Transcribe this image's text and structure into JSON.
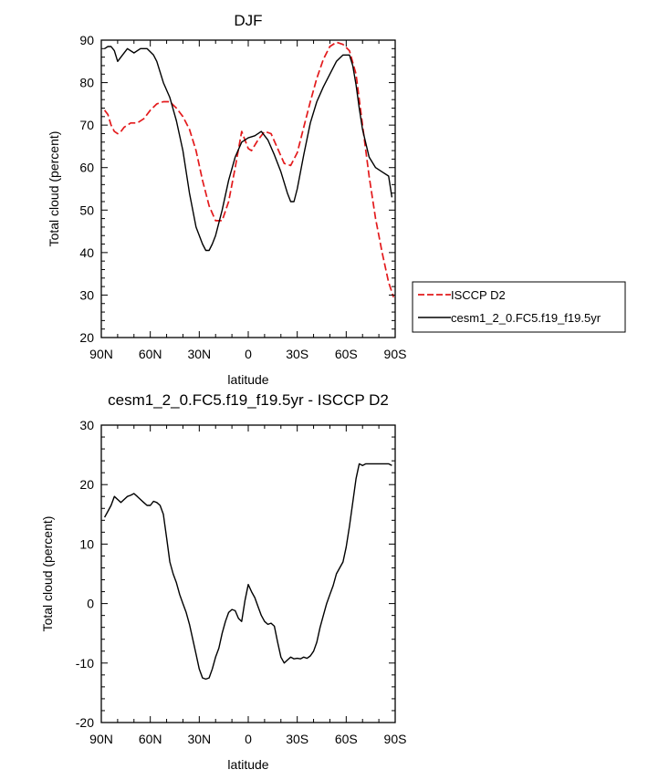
{
  "colors": {
    "model": "#000000",
    "observed": "#e31a1c",
    "frame": "#000000"
  },
  "legend": {
    "placement": "right, outside top panel",
    "entries": [
      {
        "label": "ISCCP D2",
        "color": "#e31a1c",
        "style": "dashed"
      },
      {
        "label": "cesm1_2_0.FC5.f19_f19.5yr",
        "color": "#000000",
        "style": "solid"
      }
    ]
  },
  "chart_data": [
    {
      "type": "line",
      "title": "DJF",
      "xlabel": "latitude",
      "ylabel": "Total cloud (percent)",
      "xlim": [
        90,
        -90
      ],
      "ylim": [
        20,
        90
      ],
      "xticks": [
        90,
        60,
        30,
        0,
        -30,
        -60,
        -90
      ],
      "xtick_labels": [
        "90N",
        "60N",
        "30N",
        "0",
        "30S",
        "60S",
        "90S"
      ],
      "yticks": [
        20,
        30,
        40,
        50,
        60,
        70,
        80,
        90
      ],
      "ytick_labels": [
        "20",
        "30",
        "40",
        "50",
        "60",
        "70",
        "80",
        "90"
      ],
      "grid": false,
      "series": [
        {
          "name": "ISCCP D2",
          "color": "#e31a1c",
          "style": "dashed",
          "x": [
            88,
            86,
            84,
            82,
            80,
            78,
            76,
            72,
            68,
            64,
            60,
            56,
            52,
            48,
            44,
            40,
            36,
            32,
            28,
            24,
            20,
            16,
            12,
            8,
            4,
            0,
            -2,
            -6,
            -10,
            -14,
            -18,
            -22,
            -26,
            -30,
            -34,
            -38,
            -42,
            -46,
            -50,
            -54,
            -58,
            -62,
            -66,
            -70,
            -74,
            -78,
            -82,
            -86,
            -89
          ],
          "y": [
            73.5,
            72.5,
            70.0,
            68.5,
            68.0,
            68.5,
            69.5,
            70.5,
            70.5,
            71.5,
            73.5,
            75.0,
            75.5,
            75.5,
            74.0,
            72.0,
            69.0,
            64.0,
            57.0,
            51.0,
            47.5,
            47.5,
            52.0,
            60.0,
            68.5,
            64.5,
            64.0,
            66.5,
            68.5,
            68.0,
            64.5,
            61.0,
            60.5,
            63.5,
            69.5,
            75.5,
            81.0,
            85.5,
            88.5,
            89.5,
            89.0,
            87.5,
            82.0,
            70.0,
            58.0,
            48.0,
            40.0,
            33.0,
            29.5
          ]
        },
        {
          "name": "cesm1_2_0.FC5.f19_f19.5yr",
          "color": "#000000",
          "style": "solid",
          "x": [
            88,
            86,
            84,
            82,
            80,
            78,
            74,
            70,
            66,
            62,
            58,
            56,
            54,
            52,
            48,
            44,
            40,
            36,
            32,
            28,
            26,
            24,
            22,
            20,
            16,
            12,
            8,
            4,
            0,
            -4,
            -8,
            -12,
            -16,
            -20,
            -24,
            -26,
            -28,
            -30,
            -34,
            -38,
            -42,
            -46,
            -50,
            -54,
            -58,
            -62,
            -64,
            -66,
            -68,
            -70,
            -74,
            -78,
            -82,
            -86,
            -88
          ],
          "y": [
            88.0,
            88.5,
            88.5,
            87.5,
            85.0,
            86.0,
            88.0,
            87.0,
            88.0,
            88.0,
            86.5,
            85.0,
            82.5,
            80.0,
            76.5,
            71.0,
            64.0,
            54.0,
            46.0,
            42.0,
            40.5,
            40.5,
            42.0,
            44.0,
            50.0,
            57.0,
            62.5,
            66.0,
            67.0,
            67.5,
            68.5,
            66.5,
            63.0,
            59.0,
            54.0,
            52.0,
            52.0,
            55.0,
            63.0,
            70.5,
            75.5,
            79.0,
            82.0,
            85.0,
            86.5,
            86.5,
            84.0,
            79.5,
            74.0,
            69.0,
            62.5,
            60.0,
            59.0,
            58.0,
            53.0
          ]
        }
      ]
    },
    {
      "type": "line",
      "title": "cesm1_2_0.FC5.f19_f19.5yr - ISCCP D2",
      "xlabel": "latitude",
      "ylabel": "Total cloud (percent)",
      "xlim": [
        90,
        -90
      ],
      "ylim": [
        -20,
        30
      ],
      "xticks": [
        90,
        60,
        30,
        0,
        -30,
        -60,
        -90
      ],
      "xtick_labels": [
        "90N",
        "60N",
        "30N",
        "0",
        "30S",
        "60S",
        "90S"
      ],
      "yticks": [
        -20,
        -10,
        0,
        10,
        20,
        30
      ],
      "ytick_labels": [
        "-20",
        "-10",
        "0",
        "10",
        "20",
        "30"
      ],
      "grid": false,
      "series": [
        {
          "color": "#000000",
          "style": "solid",
          "x": [
            88,
            86,
            84,
            82,
            80,
            78,
            76,
            74,
            72,
            70,
            68,
            66,
            64,
            62,
            60,
            58,
            56,
            54,
            52,
            50,
            48,
            46,
            44,
            42,
            40,
            38,
            36,
            34,
            32,
            30,
            28,
            26,
            24,
            22,
            20,
            18,
            16,
            14,
            12,
            10,
            8,
            6,
            4,
            2,
            0,
            -2,
            -4,
            -6,
            -8,
            -10,
            -12,
            -14,
            -16,
            -18,
            -20,
            -22,
            -24,
            -26,
            -28,
            -30,
            -32,
            -34,
            -36,
            -38,
            -40,
            -42,
            -44,
            -46,
            -48,
            -50,
            -52,
            -54,
            -56,
            -58,
            -60,
            -62,
            -64,
            -66,
            -68,
            -70,
            -72,
            -74,
            -76,
            -78,
            -80,
            -82,
            -84,
            -86,
            -88
          ],
          "y": [
            14.5,
            15.5,
            16.5,
            18.0,
            17.5,
            17.0,
            17.5,
            18.0,
            18.2,
            18.5,
            18.0,
            17.5,
            17.0,
            16.5,
            16.5,
            17.2,
            17.0,
            16.5,
            15.0,
            11.0,
            7.0,
            5.0,
            3.5,
            1.5,
            0.0,
            -1.5,
            -3.5,
            -6.0,
            -8.5,
            -11.0,
            -12.5,
            -12.7,
            -12.5,
            -11.0,
            -9.0,
            -7.5,
            -5.0,
            -3.0,
            -1.5,
            -1.0,
            -1.2,
            -2.5,
            -3.0,
            0.5,
            3.2,
            2.0,
            1.0,
            -0.5,
            -2.0,
            -3.0,
            -3.5,
            -3.3,
            -3.8,
            -6.5,
            -9.0,
            -10.0,
            -9.5,
            -9.0,
            -9.3,
            -9.2,
            -9.3,
            -9.0,
            -9.2,
            -8.8,
            -8.0,
            -6.5,
            -4.0,
            -2.0,
            0.0,
            1.5,
            3.0,
            5.0,
            6.0,
            7.0,
            9.5,
            13.0,
            17.0,
            21.0,
            23.5,
            23.2,
            23.5,
            23.5,
            23.5,
            23.5,
            23.5,
            23.5,
            23.5,
            23.5,
            23.2
          ]
        }
      ]
    }
  ]
}
